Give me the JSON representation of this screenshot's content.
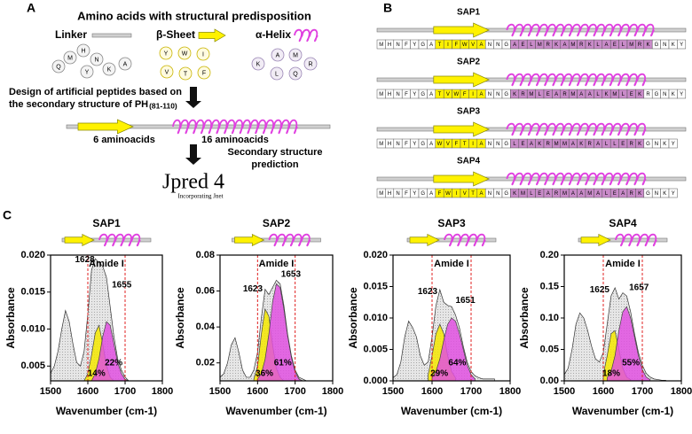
{
  "panel_a": {
    "label": "A",
    "title": "Amino acids with structural predisposition",
    "groups": [
      {
        "name": "Linker",
        "residues": [
          "Q",
          "M",
          "H",
          "N",
          "Y",
          "K",
          "A"
        ]
      },
      {
        "name": "β-Sheet",
        "residues": [
          "Y",
          "W",
          "I",
          "V",
          "T",
          "F"
        ]
      },
      {
        "name": "α-Helix",
        "residues": [
          "K",
          "A",
          "M",
          "L",
          "Q",
          "R"
        ]
      }
    ],
    "design_text": [
      "Design of artificial peptides based on",
      "the secondary structure of PH"
    ],
    "design_range": "(81-110)",
    "segments": [
      "6 aminoacids",
      "16 aminoacids"
    ],
    "prediction_text": [
      "Secondary structure",
      "prediction"
    ],
    "logo": "Jpred 4",
    "logo_sub": "Incorporating Jnet"
  },
  "panel_b": {
    "label": "B",
    "peptides": [
      {
        "name": "SAP1",
        "n_term": [
          "M",
          "H",
          "N",
          "F",
          "Y",
          "G",
          "A"
        ],
        "sheet": [
          "T",
          "I",
          "F",
          "W",
          "V",
          "A"
        ],
        "linker": [
          "N",
          "N",
          "G"
        ],
        "helix": [
          "A",
          "E",
          "L",
          "M",
          "R",
          "K",
          "A",
          "M",
          "R",
          "K",
          "L",
          "A",
          "E",
          "L",
          "M",
          "R",
          "K"
        ],
        "c_term": [
          "G",
          "N",
          "K",
          "Y"
        ]
      },
      {
        "name": "SAP2",
        "n_term": [
          "M",
          "H",
          "N",
          "F",
          "Y",
          "G",
          "A"
        ],
        "sheet": [
          "T",
          "V",
          "W",
          "F",
          "I",
          "A"
        ],
        "linker": [
          "N",
          "N",
          "G"
        ],
        "helix": [
          "K",
          "R",
          "M",
          "L",
          "E",
          "A",
          "R",
          "M",
          "A",
          "A",
          "L",
          "K",
          "M",
          "L",
          "E",
          "K"
        ],
        "c_term": [
          "R",
          "G",
          "N",
          "K",
          "Y"
        ]
      },
      {
        "name": "SAP3",
        "n_term": [
          "M",
          "H",
          "N",
          "F",
          "Y",
          "G",
          "A"
        ],
        "sheet": [
          "W",
          "V",
          "F",
          "T",
          "I",
          "A"
        ],
        "linker": [
          "N",
          "N",
          "G"
        ],
        "helix": [
          "L",
          "E",
          "A",
          "K",
          "R",
          "M",
          "M",
          "A",
          "K",
          "R",
          "A",
          "L",
          "L",
          "E",
          "R",
          "K"
        ],
        "c_term": [
          "G",
          "N",
          "K",
          "Y"
        ]
      },
      {
        "name": "SAP4",
        "n_term": [
          "M",
          "H",
          "N",
          "F",
          "Y",
          "G",
          "A"
        ],
        "sheet": [
          "F",
          "W",
          "I",
          "V",
          "T",
          "A"
        ],
        "linker": [
          "N",
          "N",
          "G"
        ],
        "helix": [
          "K",
          "M",
          "L",
          "E",
          "A",
          "R",
          "M",
          "A",
          "A",
          "M",
          "A",
          "L",
          "E",
          "A",
          "R",
          "K"
        ],
        "c_term": [
          "G",
          "N",
          "K",
          "Y"
        ]
      }
    ]
  },
  "panel_c_label": "C",
  "chart_data": [
    {
      "type": "area",
      "title": "SAP1",
      "xlabel": "Wavenumber (cm-1)",
      "ylabel": "Absorbance",
      "annotation": "Amide I",
      "amide_band": [
        1600,
        1700
      ],
      "xlim": [
        1500,
        1800
      ],
      "xticks": [
        1500,
        1600,
        1700,
        1800
      ],
      "ylim": [
        0.003,
        0.02
      ],
      "yticks": [
        0.005,
        {
          "value": 0.01,
          "label": "0.010"
        },
        0.015,
        {
          "value": 0.02,
          "label": "0.020"
        }
      ],
      "x": [
        1500,
        1510,
        1520,
        1530,
        1540,
        1550,
        1560,
        1570,
        1580,
        1590,
        1600,
        1610,
        1620,
        1630,
        1640,
        1650,
        1660,
        1670,
        1680,
        1690,
        1700,
        1710,
        1720,
        1730,
        1740,
        1750,
        1760
      ],
      "series": [
        {
          "color": "#d9d9d9",
          "values": [
            0.004,
            0.005,
            0.007,
            0.01,
            0.0125,
            0.011,
            0.008,
            0.0055,
            0.005,
            0.007,
            0.012,
            0.018,
            0.0195,
            0.019,
            0.0185,
            0.017,
            0.013,
            0.009,
            0.006,
            0.0045,
            0.0035,
            0.003,
            0.003,
            0.003,
            0.003,
            0.003,
            0.003
          ]
        },
        {
          "color": "#f5e800",
          "peak": 1628,
          "share": 14,
          "share_label": "14%",
          "values": [
            null,
            null,
            null,
            null,
            null,
            null,
            null,
            null,
            null,
            0.003,
            0.004,
            0.0065,
            0.0095,
            0.0105,
            0.008,
            0.005,
            0.0035,
            0.003,
            null,
            null,
            null,
            null,
            null,
            null,
            null,
            null,
            null
          ]
        },
        {
          "color": "#e050e0",
          "peak": 1655,
          "share": 22,
          "share_label": "22%",
          "values": [
            null,
            null,
            null,
            null,
            null,
            null,
            null,
            null,
            null,
            null,
            null,
            0.003,
            0.004,
            0.006,
            0.009,
            0.011,
            0.0105,
            0.008,
            0.0055,
            0.004,
            0.0032,
            0.003,
            null,
            null,
            null,
            null,
            null
          ]
        }
      ]
    },
    {
      "type": "area",
      "title": "SAP2",
      "xlabel": "Wavenumber (cm-1)",
      "ylabel": "Absorbance",
      "annotation": "Amide I",
      "amide_band": [
        1600,
        1700
      ],
      "xlim": [
        1500,
        1800
      ],
      "xticks": [
        1500,
        1600,
        1700,
        1800
      ],
      "ylim": [
        0.01,
        0.08
      ],
      "yticks": [
        0.02,
        0.04,
        0.06,
        0.08
      ],
      "x": [
        1500,
        1510,
        1520,
        1530,
        1540,
        1550,
        1560,
        1570,
        1580,
        1590,
        1600,
        1610,
        1620,
        1630,
        1640,
        1650,
        1660,
        1670,
        1680,
        1690,
        1700,
        1710,
        1720,
        1730,
        1740,
        1750,
        1760
      ],
      "series": [
        {
          "color": "#d9d9d9",
          "values": [
            0.012,
            0.014,
            0.02,
            0.03,
            0.034,
            0.026,
            0.016,
            0.012,
            0.012,
            0.016,
            0.026,
            0.045,
            0.061,
            0.058,
            0.062,
            0.066,
            0.064,
            0.052,
            0.036,
            0.024,
            0.016,
            0.012,
            0.011,
            0.01,
            0.01,
            0.01,
            0.01
          ]
        },
        {
          "color": "#f5e800",
          "peak": 1623,
          "share": 36,
          "share_label": "36%",
          "values": [
            null,
            null,
            null,
            null,
            null,
            null,
            null,
            null,
            null,
            0.011,
            0.018,
            0.036,
            0.05,
            0.046,
            0.03,
            0.017,
            0.012,
            0.01,
            null,
            null,
            null,
            null,
            null,
            null,
            null,
            null,
            null
          ]
        },
        {
          "color": "#e050e0",
          "peak": 1653,
          "share": 61,
          "share_label": "61%",
          "values": [
            null,
            null,
            null,
            null,
            null,
            null,
            null,
            null,
            null,
            null,
            0.011,
            0.014,
            0.022,
            0.036,
            0.054,
            0.064,
            0.062,
            0.05,
            0.035,
            0.023,
            0.015,
            0.011,
            0.01,
            null,
            null,
            null,
            null
          ]
        }
      ]
    },
    {
      "type": "area",
      "title": "SAP3",
      "xlabel": "Wavenumber (cm-1)",
      "ylabel": "Absorbance",
      "annotation": "Amide I",
      "amide_band": [
        1600,
        1700
      ],
      "xlim": [
        1500,
        1800
      ],
      "xticks": [
        1500,
        1600,
        1700,
        1800
      ],
      "ylim": [
        0,
        0.02
      ],
      "yticks": [
        {
          "value": 0,
          "label": "0.000"
        },
        0.005,
        {
          "value": 0.01,
          "label": "0.010"
        },
        0.015,
        {
          "value": 0.02,
          "label": "0.020"
        }
      ],
      "x": [
        1500,
        1510,
        1520,
        1530,
        1540,
        1550,
        1560,
        1570,
        1580,
        1590,
        1600,
        1610,
        1620,
        1630,
        1640,
        1650,
        1660,
        1670,
        1680,
        1690,
        1700,
        1710,
        1720,
        1730,
        1740,
        1750,
        1760
      ],
      "series": [
        {
          "color": "#d9d9d9",
          "values": [
            0.0005,
            0.001,
            0.003,
            0.007,
            0.0095,
            0.0085,
            0.007,
            0.004,
            0.0025,
            0.003,
            0.007,
            0.012,
            0.0145,
            0.0125,
            0.012,
            0.0118,
            0.0105,
            0.0085,
            0.0055,
            0.003,
            0.0015,
            0.0008,
            0.0005,
            0.0003,
            0.0003,
            0.0003,
            0.0003
          ]
        },
        {
          "color": "#f5e800",
          "peak": 1623,
          "share": 29,
          "share_label": "29%",
          "values": [
            null,
            null,
            null,
            null,
            null,
            null,
            null,
            null,
            null,
            0.001,
            0.004,
            0.0075,
            0.009,
            0.0075,
            0.004,
            0.0015,
            0.0005,
            null,
            null,
            null,
            null,
            null,
            null,
            null,
            null,
            null,
            null
          ]
        },
        {
          "color": "#e050e0",
          "peak": 1651,
          "share": 64,
          "share_label": "64%",
          "values": [
            null,
            null,
            null,
            null,
            null,
            null,
            null,
            null,
            null,
            null,
            0.0005,
            0.0015,
            0.0035,
            0.0065,
            0.009,
            0.01,
            0.0095,
            0.0075,
            0.005,
            0.0025,
            0.001,
            0.0003,
            null,
            null,
            null,
            null,
            null
          ]
        }
      ]
    },
    {
      "type": "area",
      "title": "SAP4",
      "xlabel": "Wavenumber (cm-1)",
      "ylabel": "Absorbance",
      "annotation": "Amide I",
      "amide_band": [
        1600,
        1700
      ],
      "xlim": [
        1500,
        1800
      ],
      "xticks": [
        1500,
        1600,
        1700,
        1800
      ],
      "ylim": [
        0,
        0.2
      ],
      "yticks": [
        {
          "value": 0,
          "label": "0.00"
        },
        0.05,
        {
          "value": 0.1,
          "label": "0.10"
        },
        0.15,
        {
          "value": 0.2,
          "label": "0.20"
        }
      ],
      "x": [
        1500,
        1510,
        1520,
        1530,
        1540,
        1550,
        1560,
        1570,
        1580,
        1590,
        1600,
        1610,
        1620,
        1630,
        1640,
        1650,
        1660,
        1670,
        1680,
        1690,
        1700,
        1710,
        1720,
        1730,
        1740,
        1750,
        1760
      ],
      "series": [
        {
          "color": "#d9d9d9",
          "values": [
            0.01,
            0.02,
            0.05,
            0.09,
            0.108,
            0.1,
            0.08,
            0.055,
            0.035,
            0.03,
            0.045,
            0.09,
            0.135,
            0.148,
            0.13,
            0.14,
            0.135,
            0.11,
            0.075,
            0.045,
            0.025,
            0.012,
            0.006,
            0.003,
            0.002,
            0.001,
            0.001
          ]
        },
        {
          "color": "#f5e800",
          "peak": 1625,
          "share": 18,
          "share_label": "18%",
          "values": [
            null,
            null,
            null,
            null,
            null,
            null,
            null,
            null,
            null,
            null,
            0.01,
            0.04,
            0.075,
            0.08,
            0.05,
            0.02,
            0.006,
            0.002,
            null,
            null,
            null,
            null,
            null,
            null,
            null,
            null,
            null
          ]
        },
        {
          "color": "#e050e0",
          "peak": 1657,
          "share": 55,
          "share_label": "55%",
          "values": [
            null,
            null,
            null,
            null,
            null,
            null,
            null,
            null,
            null,
            null,
            null,
            0.005,
            0.015,
            0.04,
            0.08,
            0.11,
            0.118,
            0.1,
            0.07,
            0.04,
            0.018,
            0.006,
            0.002,
            null,
            null,
            null,
            null
          ]
        }
      ]
    }
  ]
}
